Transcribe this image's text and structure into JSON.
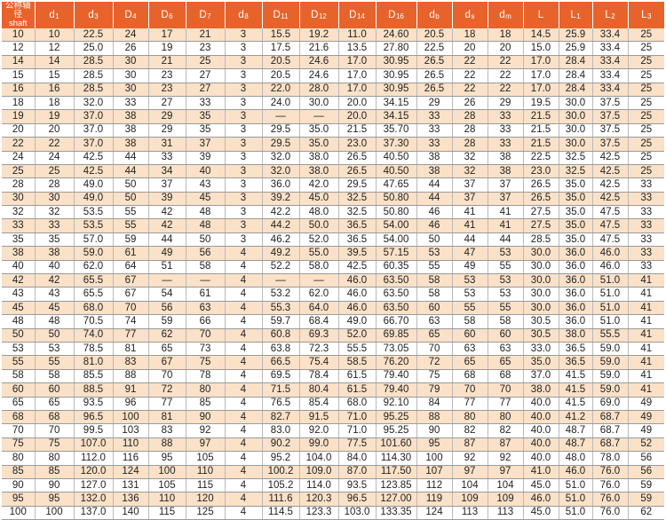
{
  "header": [
    {
      "base": "公称轴径",
      "sub": "",
      "second": "shaft"
    },
    {
      "base": "d",
      "sub": "1"
    },
    {
      "base": "d",
      "sub": "3"
    },
    {
      "base": "D",
      "sub": "4"
    },
    {
      "base": "D",
      "sub": "6"
    },
    {
      "base": "D",
      "sub": "7"
    },
    {
      "base": "d",
      "sub": "8"
    },
    {
      "base": "D",
      "sub": "11"
    },
    {
      "base": "D",
      "sub": "12"
    },
    {
      "base": "D",
      "sub": "14"
    },
    {
      "base": "D",
      "sub": "16"
    },
    {
      "base": "d",
      "sub": "b"
    },
    {
      "base": "d",
      "sub": "s"
    },
    {
      "base": "d",
      "sub": "m"
    },
    {
      "base": "L",
      "sub": ""
    },
    {
      "base": "L",
      "sub": "1"
    },
    {
      "base": "L",
      "sub": "2"
    },
    {
      "base": "L",
      "sub": "3"
    }
  ],
  "rows": [
    [
      "10",
      "10",
      "22.5",
      "24",
      "17",
      "21",
      "3",
      "15.5",
      "19.2",
      "11.0",
      "24.60",
      "20.5",
      "18",
      "18",
      "14.5",
      "25.9",
      "33.4",
      "25"
    ],
    [
      "12",
      "12",
      "25.0",
      "26",
      "19",
      "23",
      "3",
      "17.5",
      "21.6",
      "13.5",
      "27.80",
      "22.5",
      "20",
      "20",
      "15.0",
      "25.9",
      "33.4",
      "25"
    ],
    [
      "14",
      "14",
      "28.5",
      "30",
      "21",
      "25",
      "3",
      "20.5",
      "24.6",
      "17.0",
      "30.95",
      "26.5",
      "22",
      "22",
      "17.0",
      "28.4",
      "33.4",
      "25"
    ],
    [
      "15",
      "15",
      "28.5",
      "30",
      "23",
      "27",
      "3",
      "20.5",
      "24.6",
      "17.0",
      "30.95",
      "26.5",
      "22",
      "22",
      "17.0",
      "28.4",
      "33.4",
      "25"
    ],
    [
      "16",
      "16",
      "28.5",
      "30",
      "23",
      "27",
      "3",
      "22.0",
      "28.0",
      "17.0",
      "30.95",
      "26.5",
      "22",
      "22",
      "17.0",
      "28.4",
      "33.4",
      "25"
    ],
    [
      "18",
      "18",
      "32.0",
      "33",
      "27",
      "33",
      "3",
      "24.0",
      "30.0",
      "20.0",
      "34.15",
      "29",
      "26",
      "29",
      "19.5",
      "30.0",
      "37.5",
      "25"
    ],
    [
      "19",
      "19",
      "37.0",
      "38",
      "29",
      "35",
      "3",
      "—",
      "—",
      "20.0",
      "34.15",
      "33",
      "28",
      "33",
      "21.5",
      "30.0",
      "37.5",
      "25"
    ],
    [
      "20",
      "20",
      "37.0",
      "38",
      "29",
      "35",
      "3",
      "29.5",
      "35.0",
      "21.5",
      "35.70",
      "33",
      "28",
      "33",
      "21.5",
      "30.0",
      "37.5",
      "25"
    ],
    [
      "22",
      "22",
      "37.0",
      "38",
      "31",
      "37",
      "3",
      "29.5",
      "35.0",
      "23.0",
      "37.30",
      "33",
      "28",
      "33",
      "21.5",
      "30.0",
      "37.5",
      "25"
    ],
    [
      "24",
      "24",
      "42.5",
      "44",
      "33",
      "39",
      "3",
      "32.0",
      "38.0",
      "26.5",
      "40.50",
      "38",
      "32",
      "38",
      "22.5",
      "32.5",
      "42.5",
      "25"
    ],
    [
      "25",
      "25",
      "42.5",
      "44",
      "34",
      "40",
      "3",
      "32.0",
      "38.0",
      "26.5",
      "40.50",
      "38",
      "32",
      "38",
      "23.0",
      "32.5",
      "42.5",
      "25"
    ],
    [
      "28",
      "28",
      "49.0",
      "50",
      "37",
      "43",
      "3",
      "36.0",
      "42.0",
      "29.5",
      "47.65",
      "44",
      "37",
      "37",
      "26.5",
      "35.0",
      "42.5",
      "33"
    ],
    [
      "30",
      "30",
      "49.0",
      "50",
      "39",
      "45",
      "3",
      "39.2",
      "45.0",
      "32.5",
      "50.80",
      "44",
      "37",
      "37",
      "26.5",
      "35.0",
      "42.5",
      "33"
    ],
    [
      "32",
      "32",
      "53.5",
      "55",
      "42",
      "48",
      "3",
      "42.2",
      "48.0",
      "32.5",
      "50.80",
      "46",
      "41",
      "41",
      "27.5",
      "35.0",
      "47.5",
      "33"
    ],
    [
      "33",
      "33",
      "53.5",
      "55",
      "42",
      "48",
      "3",
      "44.2",
      "50.0",
      "36.5",
      "54.00",
      "46",
      "41",
      "41",
      "27.5",
      "35.0",
      "47.5",
      "33"
    ],
    [
      "35",
      "35",
      "57.0",
      "59",
      "44",
      "50",
      "3",
      "46.2",
      "52.0",
      "36.5",
      "54.00",
      "50",
      "44",
      "44",
      "28.5",
      "35.0",
      "47.5",
      "33"
    ],
    [
      "38",
      "38",
      "59.0",
      "61",
      "49",
      "56",
      "4",
      "49.2",
      "55.0",
      "39.5",
      "57.15",
      "53",
      "47",
      "53",
      "30.0",
      "36.0",
      "46.0",
      "33"
    ],
    [
      "40",
      "40",
      "62.0",
      "64",
      "51",
      "58",
      "4",
      "52.2",
      "58.0",
      "42.5",
      "60.35",
      "55",
      "49",
      "55",
      "30.0",
      "36.0",
      "46.0",
      "33"
    ],
    [
      "42",
      "42",
      "65.5",
      "67",
      "—",
      "—",
      "4",
      "—",
      "—",
      "46.0",
      "63.50",
      "58",
      "53",
      "53",
      "30.0",
      "36.0",
      "51.0",
      "41"
    ],
    [
      "43",
      "43",
      "65.5",
      "67",
      "54",
      "61",
      "4",
      "53.2",
      "62.0",
      "46.0",
      "63.50",
      "58",
      "53",
      "53",
      "30.0",
      "36.0",
      "51.0",
      "41"
    ],
    [
      "45",
      "45",
      "68.0",
      "70",
      "56",
      "63",
      "4",
      "55.3",
      "64.0",
      "46.0",
      "63.50",
      "60",
      "55",
      "55",
      "30.0",
      "36.0",
      "51.0",
      "41"
    ],
    [
      "48",
      "48",
      "70.5",
      "74",
      "59",
      "66",
      "4",
      "59.7",
      "68.4",
      "49.0",
      "66.70",
      "63",
      "58",
      "58",
      "30.5",
      "36.0",
      "51.0",
      "41"
    ],
    [
      "50",
      "50",
      "74.0",
      "77",
      "62",
      "70",
      "4",
      "60.8",
      "69.3",
      "52.0",
      "69.85",
      "65",
      "60",
      "60",
      "30.5",
      "38.0",
      "55.5",
      "41"
    ],
    [
      "53",
      "53",
      "78.5",
      "81",
      "65",
      "73",
      "4",
      "63.8",
      "72.3",
      "55.5",
      "73.05",
      "70",
      "63",
      "63",
      "33.0",
      "36.5",
      "59.0",
      "41"
    ],
    [
      "55",
      "55",
      "81.0",
      "83",
      "67",
      "75",
      "4",
      "66.5",
      "75.4",
      "58.5",
      "76.20",
      "72",
      "65",
      "65",
      "35.0",
      "36.5",
      "59.0",
      "41"
    ],
    [
      "58",
      "58",
      "85.5",
      "88",
      "70",
      "78",
      "4",
      "69.5",
      "78.4",
      "61.5",
      "79.40",
      "75",
      "68",
      "68",
      "37.0",
      "41.5",
      "59.0",
      "41"
    ],
    [
      "60",
      "60",
      "88.5",
      "91",
      "72",
      "80",
      "4",
      "71.5",
      "80.4",
      "61.5",
      "79.40",
      "79",
      "70",
      "70",
      "38.0",
      "41.5",
      "59.0",
      "41"
    ],
    [
      "65",
      "65",
      "93.5",
      "96",
      "77",
      "85",
      "4",
      "76.5",
      "85.4",
      "68.0",
      "92.10",
      "84",
      "77",
      "77",
      "40.0",
      "41.5",
      "69.0",
      "49"
    ],
    [
      "68",
      "68",
      "96.5",
      "100",
      "81",
      "90",
      "4",
      "82.7",
      "91.5",
      "71.0",
      "95.25",
      "88",
      "80",
      "80",
      "40.0",
      "41.2",
      "68.7",
      "49"
    ],
    [
      "70",
      "70",
      "99.5",
      "103",
      "83",
      "92",
      "4",
      "83.0",
      "92.0",
      "71.0",
      "95.25",
      "90",
      "82",
      "82",
      "40.0",
      "48.7",
      "68.7",
      "49"
    ],
    [
      "75",
      "75",
      "107.0",
      "110",
      "88",
      "97",
      "4",
      "90.2",
      "99.0",
      "77.5",
      "101.60",
      "95",
      "87",
      "87",
      "40.0",
      "48.7",
      "68.7",
      "52"
    ],
    [
      "80",
      "80",
      "112.0",
      "116",
      "95",
      "105",
      "4",
      "95.2",
      "104.0",
      "84.0",
      "114.30",
      "100",
      "92",
      "92",
      "40.0",
      "48.0",
      "78.0",
      "56"
    ],
    [
      "85",
      "85",
      "120.0",
      "124",
      "100",
      "110",
      "4",
      "100.2",
      "109.0",
      "87.0",
      "117.50",
      "107",
      "97",
      "97",
      "41.0",
      "46.0",
      "76.0",
      "56"
    ],
    [
      "90",
      "90",
      "127.0",
      "131",
      "105",
      "115",
      "4",
      "105.2",
      "114.0",
      "93.5",
      "123.85",
      "112",
      "104",
      "104",
      "45.0",
      "51.0",
      "76.0",
      "59"
    ],
    [
      "95",
      "95",
      "132.0",
      "136",
      "110",
      "120",
      "4",
      "111.6",
      "120.3",
      "96.5",
      "127.00",
      "119",
      "109",
      "109",
      "46.0",
      "51.0",
      "76.0",
      "59"
    ],
    [
      "100",
      "100",
      "137.0",
      "140",
      "115",
      "125",
      "4",
      "114.5",
      "123.3",
      "103.0",
      "133.35",
      "124",
      "113",
      "113",
      "45.0",
      "51.0",
      "76.0",
      "62"
    ]
  ],
  "colors": {
    "header_bg": "#e8632a",
    "header_text": "#ffffff",
    "shade_row": "#fbe1c7",
    "plain_row": "#ffffff"
  }
}
